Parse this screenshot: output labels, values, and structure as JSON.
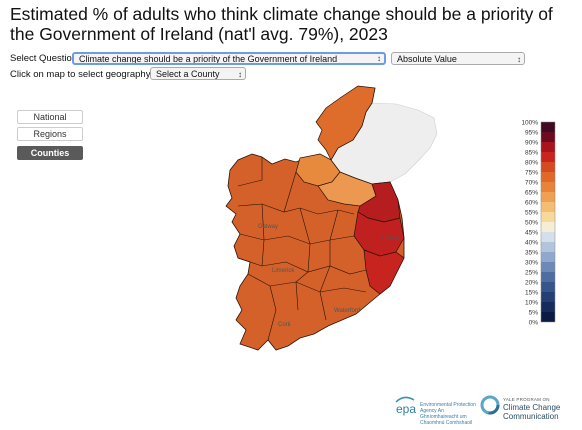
{
  "title": "Estimated % of adults who think climate change should be a priority of the Government of Ireland (nat'l avg. 79%), 2023",
  "controls": {
    "question_label": "Select Question:",
    "question_value": "Climate change should be a priority of the Government of Ireland",
    "mode_value": "Absolute Value",
    "geo_label": "Click on map to select geography, or:",
    "county_placeholder": "Select a County"
  },
  "geography_buttons": [
    {
      "label": "National",
      "active": false
    },
    {
      "label": "Regions",
      "active": false
    },
    {
      "label": "Counties",
      "active": true
    }
  ],
  "legend": {
    "labels": [
      "100%",
      "95%",
      "90%",
      "85%",
      "80%",
      "75%",
      "70%",
      "65%",
      "60%",
      "55%",
      "50%",
      "45%",
      "40%",
      "35%",
      "30%",
      "25%",
      "20%",
      "15%",
      "10%",
      "5%",
      "0%"
    ],
    "colors": [
      "#3f0a22",
      "#6d0a20",
      "#a8131c",
      "#c9251f",
      "#d64a22",
      "#e0692a",
      "#e8843a",
      "#efa052",
      "#f3bd73",
      "#f7d99c",
      "#f6edd5",
      "#d5dfec",
      "#b3c5dc",
      "#8fa8cb",
      "#6d89b6",
      "#4f6da0",
      "#36558a",
      "#253f73",
      "#172c5a",
      "#0c1b42"
    ]
  },
  "map": {
    "northern_ireland_color": "#eeeeee",
    "cities": [
      "Galway",
      "Limerick",
      "Cork",
      "Waterford",
      "Dublin"
    ]
  },
  "logos": {
    "epa_mark": "epa",
    "epa_text": "Environmental Protection Agency An Ghníomhaireacht um Chaomhnú Comhshaoil",
    "yale_small": "YALE PROGRAM ON",
    "yale_big": "Climate Change Communication"
  }
}
